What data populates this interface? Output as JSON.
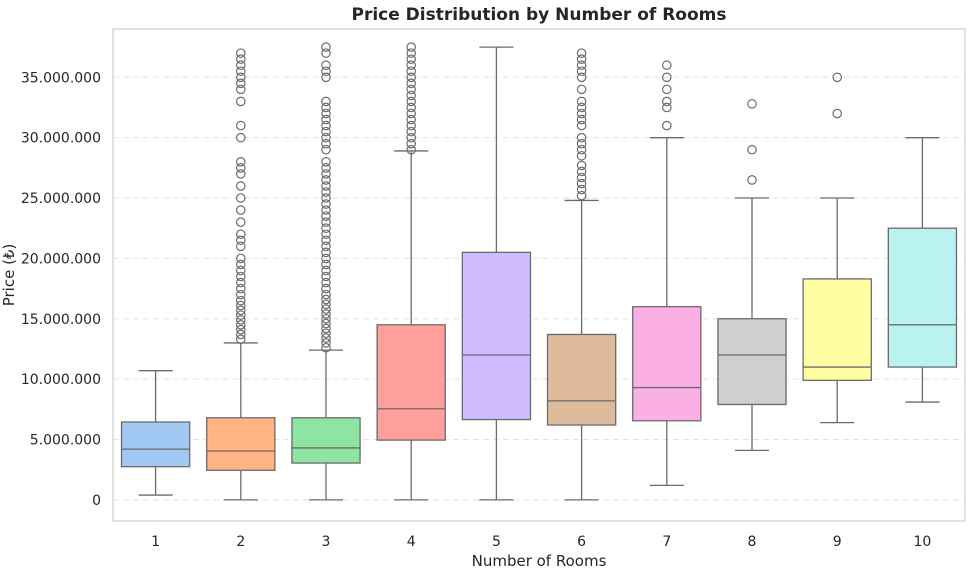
{
  "chart_data": {
    "type": "box",
    "title": "Price Distribution by Number of Rooms",
    "xlabel": "Number of Rooms",
    "ylabel": "Price (₺)",
    "ylim": [
      -1750000,
      39000000
    ],
    "grid": "y-dashed",
    "categories": [
      "1",
      "2",
      "3",
      "4",
      "5",
      "6",
      "7",
      "8",
      "9",
      "10"
    ],
    "yticks": [
      {
        "value": 0,
        "label": "0"
      },
      {
        "value": 5000000,
        "label": "5.000.000"
      },
      {
        "value": 10000000,
        "label": "10.000.000"
      },
      {
        "value": 15000000,
        "label": "15.000.000"
      },
      {
        "value": 20000000,
        "label": "20.000.000"
      },
      {
        "value": 25000000,
        "label": "25.000.000"
      },
      {
        "value": 30000000,
        "label": "30.000.000"
      },
      {
        "value": 35000000,
        "label": "35.000.000"
      }
    ],
    "boxes": [
      {
        "category": "1",
        "color": "#a1c9f4",
        "whisker_low": 400000,
        "q1": 2750000,
        "median": 4200000,
        "q3": 6450000,
        "whisker_high": 10700000,
        "outliers": []
      },
      {
        "category": "2",
        "color": "#ffb482",
        "whisker_low": 0,
        "q1": 2450000,
        "median": 4050000,
        "q3": 6800000,
        "whisker_high": 13000000,
        "outliers": [
          13300000,
          13700000,
          14100000,
          14500000,
          14900000,
          15300000,
          15700000,
          16100000,
          16500000,
          17000000,
          17500000,
          18000000,
          18500000,
          19000000,
          19500000,
          20000000,
          21000000,
          21500000,
          22000000,
          23000000,
          24000000,
          25000000,
          26000000,
          27000000,
          27500000,
          28000000,
          30000000,
          31000000,
          33000000,
          34000000,
          34500000,
          35000000,
          35500000,
          36000000,
          36500000,
          37000000
        ]
      },
      {
        "category": "3",
        "color": "#8de5a1",
        "whisker_low": 0,
        "q1": 3050000,
        "median": 4300000,
        "q3": 6800000,
        "whisker_high": 12400000,
        "outliers": [
          12600000,
          13000000,
          13400000,
          13800000,
          14200000,
          14600000,
          15000000,
          15400000,
          15800000,
          16200000,
          16600000,
          17000000,
          17500000,
          18000000,
          18500000,
          19000000,
          19500000,
          20000000,
          20500000,
          21000000,
          21500000,
          22000000,
          22500000,
          23000000,
          23500000,
          24000000,
          24500000,
          25000000,
          25500000,
          26000000,
          26500000,
          27000000,
          27500000,
          28000000,
          29000000,
          29500000,
          30000000,
          30500000,
          31000000,
          31500000,
          32000000,
          32500000,
          33000000,
          35000000,
          35500000,
          36000000,
          37000000,
          37500000
        ]
      },
      {
        "category": "4",
        "color": "#ff9f9b",
        "whisker_low": 0,
        "q1": 4950000,
        "median": 7550000,
        "q3": 14500000,
        "whisker_high": 28900000,
        "outliers": [
          29000000,
          29500000,
          30000000,
          30500000,
          31000000,
          31500000,
          32000000,
          32500000,
          33000000,
          33500000,
          34000000,
          34500000,
          35000000,
          35500000,
          36000000,
          36500000,
          37000000,
          37500000
        ]
      },
      {
        "category": "5",
        "color": "#d0bbff",
        "whisker_low": 0,
        "q1": 6650000,
        "median": 12000000,
        "q3": 20500000,
        "whisker_high": 37500000,
        "outliers": []
      },
      {
        "category": "6",
        "color": "#debb9b",
        "whisker_low": 0,
        "q1": 6200000,
        "median": 8200000,
        "q3": 13700000,
        "whisker_high": 24800000,
        "outliers": [
          25200000,
          25700000,
          26200000,
          26700000,
          27200000,
          27700000,
          28500000,
          29000000,
          29500000,
          30000000,
          31000000,
          31500000,
          32000000,
          32500000,
          33000000,
          34000000,
          35000000,
          35500000,
          36000000,
          36500000,
          37000000
        ]
      },
      {
        "category": "7",
        "color": "#fab0e4",
        "whisker_low": 1200000,
        "q1": 6550000,
        "median": 9300000,
        "q3": 16000000,
        "whisker_high": 30000000,
        "outliers": [
          31000000,
          32500000,
          33000000,
          34000000,
          35000000,
          36000000
        ]
      },
      {
        "category": "8",
        "color": "#cfcfcf",
        "whisker_low": 4100000,
        "q1": 7900000,
        "median": 12000000,
        "q3": 15000000,
        "whisker_high": 25000000,
        "outliers": [
          26500000,
          29000000,
          32800000
        ]
      },
      {
        "category": "9",
        "color": "#fffea3",
        "whisker_low": 6400000,
        "q1": 9900000,
        "median": 11000000,
        "q3": 18300000,
        "whisker_high": 25000000,
        "outliers": [
          32000000,
          35000000
        ]
      },
      {
        "category": "10",
        "color": "#b9f2f0",
        "whisker_low": 8100000,
        "q1": 11000000,
        "median": 14500000,
        "q3": 22500000,
        "whisker_high": 30000000,
        "outliers": []
      }
    ]
  }
}
